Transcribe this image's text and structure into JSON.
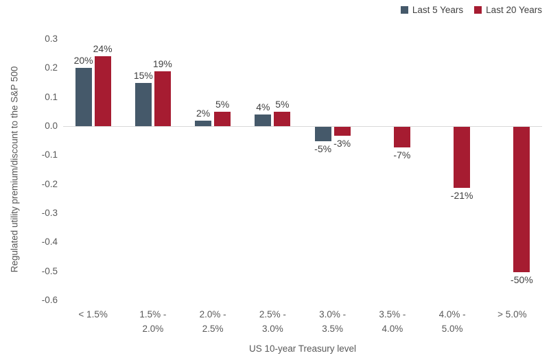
{
  "chart_data": {
    "type": "bar",
    "title": "",
    "xlabel": "US 10-year Treasury level",
    "ylabel": "Regulated utility premium/discount to the S&P 500",
    "categories": [
      "< 1.5%",
      "1.5% -\n2.0%",
      "2.0% -\n2.5%",
      "2.5% -\n3.0%",
      "3.0% -\n3.5%",
      "3.5% -\n4.0%",
      "4.0% -\n5.0%",
      "> 5.0%"
    ],
    "series": [
      {
        "name": "Last 5 Years",
        "color": "#45596A",
        "values": [
          0.2,
          0.15,
          0.02,
          0.04,
          -0.05,
          null,
          null,
          null
        ],
        "data_labels": [
          "20%",
          "15%",
          "2%",
          "4%",
          "-5%",
          null,
          null,
          null
        ]
      },
      {
        "name": "Last 20 Years",
        "color": "#A61C31",
        "values": [
          0.24,
          0.19,
          0.05,
          0.05,
          -0.03,
          -0.07,
          -0.21,
          -0.5
        ],
        "data_labels": [
          "24%",
          "19%",
          "5%",
          "5%",
          "-3%",
          "-7%",
          "-21%",
          "-50%"
        ]
      }
    ],
    "ylim": [
      -0.6,
      0.3
    ],
    "yticks": [
      "0.3",
      "0.2",
      "0.1",
      "0.0",
      "-0.1",
      "-0.2",
      "-0.3",
      "-0.4",
      "-0.5",
      "-0.6"
    ],
    "grid": false,
    "legend_position": "top-right",
    "colors": {
      "axis_line": "#D9D9D9",
      "axis_text": "#595959",
      "data_label_text": "#404040"
    }
  }
}
